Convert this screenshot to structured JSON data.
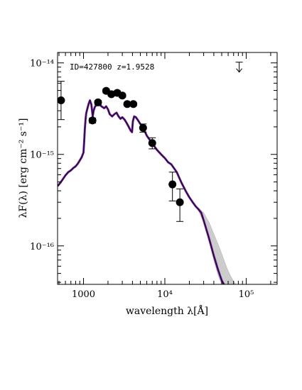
{
  "chart_data": {
    "type": "scatter",
    "title": "",
    "annotation": "ID=427800  z=1.9528",
    "xlabel": "wavelength λ[Å]",
    "ylabel": "λF(λ) [erg cm⁻² s⁻¹]",
    "xscale": "log",
    "yscale": "log",
    "xlim": [
      480,
      240000
    ],
    "ylim": [
      3.8e-17,
      1.3e-14
    ],
    "x_tick_labels": [
      {
        "value": 1000,
        "label": "1000"
      },
      {
        "value": 10000,
        "label": "10⁴"
      },
      {
        "value": 100000,
        "label": "10⁵"
      }
    ],
    "y_tick_labels": [
      {
        "value": 1e-14,
        "label": "10⁻¹⁴"
      },
      {
        "value": 1e-15,
        "label": "10⁻¹⁵"
      },
      {
        "value": 1e-16,
        "label": "10⁻¹⁶"
      }
    ],
    "grid": false,
    "legend": "none",
    "colors": {
      "model": "#2a0a3c",
      "model_edge": "#7a2aa8",
      "points": "#000000",
      "uncertainty": "#cccccc"
    },
    "points": [
      {
        "x": 530,
        "y": 3.9e-15,
        "yerr_lo": 2.4e-15,
        "yerr_hi": 6.3e-15
      },
      {
        "x": 1290,
        "y": 2.35e-15,
        "yerr_lo": 2.2e-15,
        "yerr_hi": 2.5e-15
      },
      {
        "x": 1510,
        "y": 3.7e-15,
        "yerr_lo": 3.5e-15,
        "yerr_hi": 3.9e-15
      },
      {
        "x": 1900,
        "y": 4.95e-15,
        "yerr_lo": 4.7e-15,
        "yerr_hi": 5.2e-15
      },
      {
        "x": 2200,
        "y": 4.55e-15,
        "yerr_lo": 4.35e-15,
        "yerr_hi": 4.8e-15
      },
      {
        "x": 2600,
        "y": 4.7e-15,
        "yerr_lo": 4.5e-15,
        "yerr_hi": 4.95e-15
      },
      {
        "x": 3000,
        "y": 4.4e-15,
        "yerr_lo": 4.2e-15,
        "yerr_hi": 4.6e-15
      },
      {
        "x": 3450,
        "y": 3.55e-15,
        "yerr_lo": 3.4e-15,
        "yerr_hi": 3.7e-15
      },
      {
        "x": 4100,
        "y": 3.55e-15,
        "yerr_lo": 3.4e-15,
        "yerr_hi": 3.7e-15
      },
      {
        "x": 5400,
        "y": 1.95e-15,
        "yerr_lo": 1.75e-15,
        "yerr_hi": 2.15e-15
      },
      {
        "x": 7000,
        "y": 1.33e-15,
        "yerr_lo": 1.15e-15,
        "yerr_hi": 1.52e-15
      },
      {
        "x": 12400,
        "y": 4.7e-16,
        "yerr_lo": 3.1e-16,
        "yerr_hi": 6.4e-16
      },
      {
        "x": 15300,
        "y": 3e-16,
        "yerr_lo": 1.85e-16,
        "yerr_hi": 4.2e-16
      }
    ],
    "upper_limits": [
      {
        "x": 82000,
        "y": 1e-14
      }
    ],
    "model": {
      "x": [
        480,
        520,
        560,
        600,
        650,
        700,
        750,
        800,
        850,
        900,
        950,
        1000,
        1020,
        1040,
        1060,
        1080,
        1100,
        1130,
        1160,
        1200,
        1250,
        1280,
        1300,
        1330,
        1380,
        1450,
        1520,
        1600,
        1700,
        1800,
        1900,
        2000,
        2100,
        2250,
        2400,
        2550,
        2700,
        2850,
        3000,
        3200,
        3400,
        3600,
        3800,
        3950,
        4050,
        4200,
        4400,
        4700,
        5000,
        5400,
        6000,
        7000,
        8000,
        9000,
        10000,
        11000,
        12000,
        14000,
        16000,
        18000,
        20000,
        22000,
        24000,
        26000,
        28000,
        30000,
        35000,
        40000,
        45000,
        50000,
        55000,
        60000
      ],
      "y": [
        4.5e-16,
        4.9e-16,
        5.4e-16,
        5.9e-16,
        6.4e-16,
        6.7e-16,
        7.1e-16,
        7.4e-16,
        7.9e-16,
        8.6e-16,
        9.3e-16,
        1.05e-15,
        1.4e-15,
        1.9e-15,
        2.4e-15,
        2.8e-15,
        3e-15,
        3.3e-15,
        3.6e-15,
        3.9e-15,
        3.5e-15,
        2.9e-15,
        2.6e-15,
        3e-15,
        3.3e-15,
        3.5e-15,
        3.6e-15,
        3.45e-15,
        3.3e-15,
        3.2e-15,
        3.35e-15,
        3.1e-15,
        2.75e-15,
        2.6e-15,
        2.75e-15,
        2.85e-15,
        2.6e-15,
        2.45e-15,
        2.55e-15,
        2.4e-15,
        2.2e-15,
        2e-15,
        1.82e-15,
        1.75e-15,
        2.3e-15,
        2.6e-15,
        2.55e-15,
        2.35e-15,
        2.15e-15,
        1.95e-15,
        1.6e-15,
        1.32e-15,
        1.12e-15,
        1e-15,
        9.1e-16,
        8.2e-16,
        7.8e-16,
        6.4e-16,
        4.9e-16,
        4e-16,
        3.4e-16,
        3e-16,
        2.7e-16,
        2.5e-16,
        2.3e-16,
        1.9e-16,
        1.2e-16,
        7.8e-17,
        5.5e-17,
        4.2e-17,
        3.6e-17,
        3.2e-17
      ]
    },
    "uncertainty_band": {
      "x": [
        26000,
        30000,
        35000,
        40000,
        45000,
        50000,
        55000,
        60000,
        65000,
        70000,
        75000,
        80000
      ],
      "y_hi": [
        2.6e-16,
        2.3e-16,
        1.8e-16,
        1.35e-16,
        1.05e-16,
        8.2e-17,
        6.5e-17,
        5.3e-17,
        4.6e-17,
        4.1e-17,
        3.8e-17,
        3.6e-17
      ],
      "y_lo": [
        2.4e-16,
        1.8e-16,
        1.1e-16,
        7e-17,
        4.8e-17,
        3.8e-17,
        3.2e-17,
        3e-17,
        3e-17,
        3e-17,
        3e-17,
        3e-17
      ]
    }
  }
}
